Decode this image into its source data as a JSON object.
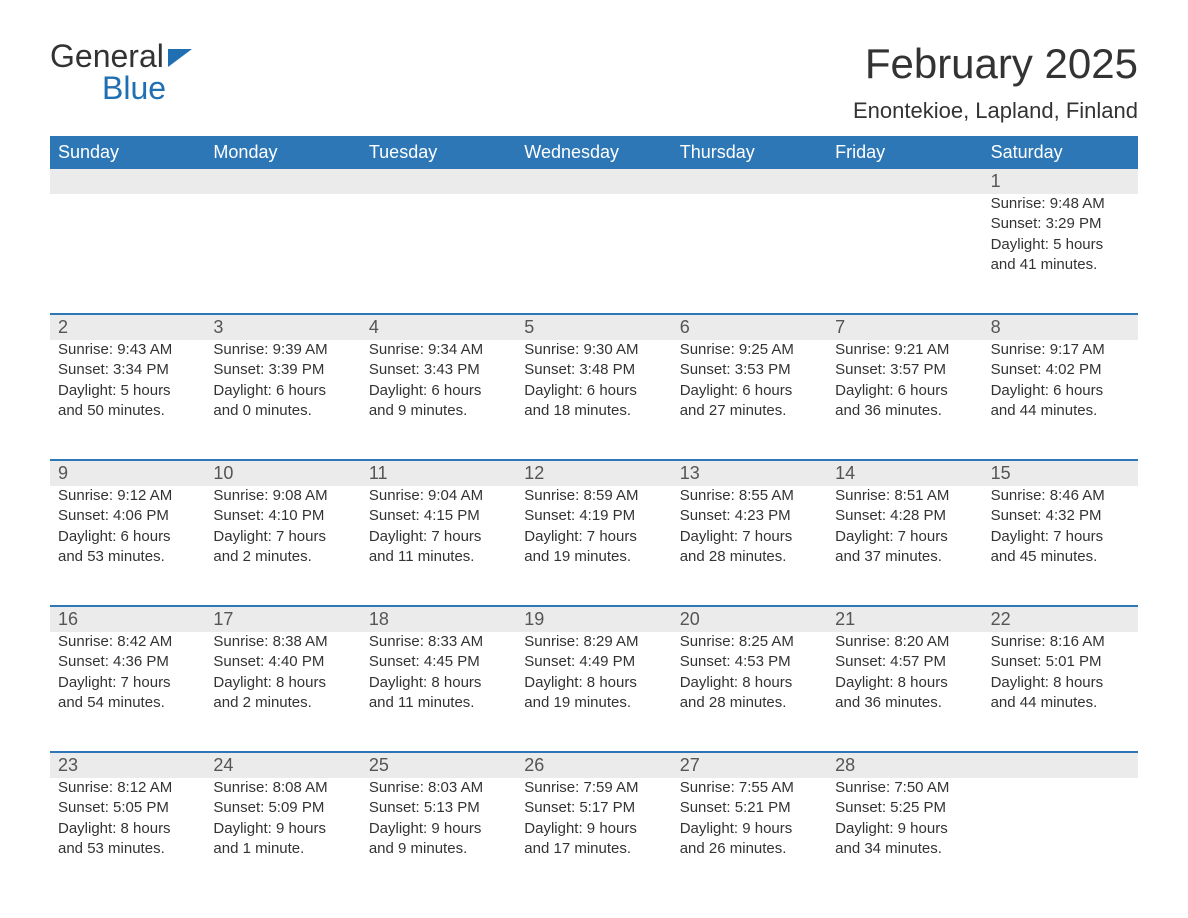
{
  "brand": {
    "part1": "General",
    "part2": "Blue"
  },
  "title": "February 2025",
  "subtitle": "Enontekioe, Lapland, Finland",
  "colors": {
    "header_bg": "#2d77b6",
    "header_text": "#ffffff",
    "daynum_bg": "#ebebeb",
    "border": "#2d77b6",
    "text": "#333333",
    "brand_blue": "#1f6fb2",
    "background": "#ffffff"
  },
  "day_names": [
    "Sunday",
    "Monday",
    "Tuesday",
    "Wednesday",
    "Thursday",
    "Friday",
    "Saturday"
  ],
  "weeks": [
    {
      "numbers": [
        "",
        "",
        "",
        "",
        "",
        "",
        "1"
      ],
      "cells": [
        null,
        null,
        null,
        null,
        null,
        null,
        {
          "sunrise": "Sunrise: 9:48 AM",
          "sunset": "Sunset: 3:29 PM",
          "day1": "Daylight: 5 hours",
          "day2": "and 41 minutes."
        }
      ]
    },
    {
      "numbers": [
        "2",
        "3",
        "4",
        "5",
        "6",
        "7",
        "8"
      ],
      "cells": [
        {
          "sunrise": "Sunrise: 9:43 AM",
          "sunset": "Sunset: 3:34 PM",
          "day1": "Daylight: 5 hours",
          "day2": "and 50 minutes."
        },
        {
          "sunrise": "Sunrise: 9:39 AM",
          "sunset": "Sunset: 3:39 PM",
          "day1": "Daylight: 6 hours",
          "day2": "and 0 minutes."
        },
        {
          "sunrise": "Sunrise: 9:34 AM",
          "sunset": "Sunset: 3:43 PM",
          "day1": "Daylight: 6 hours",
          "day2": "and 9 minutes."
        },
        {
          "sunrise": "Sunrise: 9:30 AM",
          "sunset": "Sunset: 3:48 PM",
          "day1": "Daylight: 6 hours",
          "day2": "and 18 minutes."
        },
        {
          "sunrise": "Sunrise: 9:25 AM",
          "sunset": "Sunset: 3:53 PM",
          "day1": "Daylight: 6 hours",
          "day2": "and 27 minutes."
        },
        {
          "sunrise": "Sunrise: 9:21 AM",
          "sunset": "Sunset: 3:57 PM",
          "day1": "Daylight: 6 hours",
          "day2": "and 36 minutes."
        },
        {
          "sunrise": "Sunrise: 9:17 AM",
          "sunset": "Sunset: 4:02 PM",
          "day1": "Daylight: 6 hours",
          "day2": "and 44 minutes."
        }
      ]
    },
    {
      "numbers": [
        "9",
        "10",
        "11",
        "12",
        "13",
        "14",
        "15"
      ],
      "cells": [
        {
          "sunrise": "Sunrise: 9:12 AM",
          "sunset": "Sunset: 4:06 PM",
          "day1": "Daylight: 6 hours",
          "day2": "and 53 minutes."
        },
        {
          "sunrise": "Sunrise: 9:08 AM",
          "sunset": "Sunset: 4:10 PM",
          "day1": "Daylight: 7 hours",
          "day2": "and 2 minutes."
        },
        {
          "sunrise": "Sunrise: 9:04 AM",
          "sunset": "Sunset: 4:15 PM",
          "day1": "Daylight: 7 hours",
          "day2": "and 11 minutes."
        },
        {
          "sunrise": "Sunrise: 8:59 AM",
          "sunset": "Sunset: 4:19 PM",
          "day1": "Daylight: 7 hours",
          "day2": "and 19 minutes."
        },
        {
          "sunrise": "Sunrise: 8:55 AM",
          "sunset": "Sunset: 4:23 PM",
          "day1": "Daylight: 7 hours",
          "day2": "and 28 minutes."
        },
        {
          "sunrise": "Sunrise: 8:51 AM",
          "sunset": "Sunset: 4:28 PM",
          "day1": "Daylight: 7 hours",
          "day2": "and 37 minutes."
        },
        {
          "sunrise": "Sunrise: 8:46 AM",
          "sunset": "Sunset: 4:32 PM",
          "day1": "Daylight: 7 hours",
          "day2": "and 45 minutes."
        }
      ]
    },
    {
      "numbers": [
        "16",
        "17",
        "18",
        "19",
        "20",
        "21",
        "22"
      ],
      "cells": [
        {
          "sunrise": "Sunrise: 8:42 AM",
          "sunset": "Sunset: 4:36 PM",
          "day1": "Daylight: 7 hours",
          "day2": "and 54 minutes."
        },
        {
          "sunrise": "Sunrise: 8:38 AM",
          "sunset": "Sunset: 4:40 PM",
          "day1": "Daylight: 8 hours",
          "day2": "and 2 minutes."
        },
        {
          "sunrise": "Sunrise: 8:33 AM",
          "sunset": "Sunset: 4:45 PM",
          "day1": "Daylight: 8 hours",
          "day2": "and 11 minutes."
        },
        {
          "sunrise": "Sunrise: 8:29 AM",
          "sunset": "Sunset: 4:49 PM",
          "day1": "Daylight: 8 hours",
          "day2": "and 19 minutes."
        },
        {
          "sunrise": "Sunrise: 8:25 AM",
          "sunset": "Sunset: 4:53 PM",
          "day1": "Daylight: 8 hours",
          "day2": "and 28 minutes."
        },
        {
          "sunrise": "Sunrise: 8:20 AM",
          "sunset": "Sunset: 4:57 PM",
          "day1": "Daylight: 8 hours",
          "day2": "and 36 minutes."
        },
        {
          "sunrise": "Sunrise: 8:16 AM",
          "sunset": "Sunset: 5:01 PM",
          "day1": "Daylight: 8 hours",
          "day2": "and 44 minutes."
        }
      ]
    },
    {
      "numbers": [
        "23",
        "24",
        "25",
        "26",
        "27",
        "28",
        ""
      ],
      "cells": [
        {
          "sunrise": "Sunrise: 8:12 AM",
          "sunset": "Sunset: 5:05 PM",
          "day1": "Daylight: 8 hours",
          "day2": "and 53 minutes."
        },
        {
          "sunrise": "Sunrise: 8:08 AM",
          "sunset": "Sunset: 5:09 PM",
          "day1": "Daylight: 9 hours",
          "day2": "and 1 minute."
        },
        {
          "sunrise": "Sunrise: 8:03 AM",
          "sunset": "Sunset: 5:13 PM",
          "day1": "Daylight: 9 hours",
          "day2": "and 9 minutes."
        },
        {
          "sunrise": "Sunrise: 7:59 AM",
          "sunset": "Sunset: 5:17 PM",
          "day1": "Daylight: 9 hours",
          "day2": "and 17 minutes."
        },
        {
          "sunrise": "Sunrise: 7:55 AM",
          "sunset": "Sunset: 5:21 PM",
          "day1": "Daylight: 9 hours",
          "day2": "and 26 minutes."
        },
        {
          "sunrise": "Sunrise: 7:50 AM",
          "sunset": "Sunset: 5:25 PM",
          "day1": "Daylight: 9 hours",
          "day2": "and 34 minutes."
        },
        null
      ]
    }
  ]
}
